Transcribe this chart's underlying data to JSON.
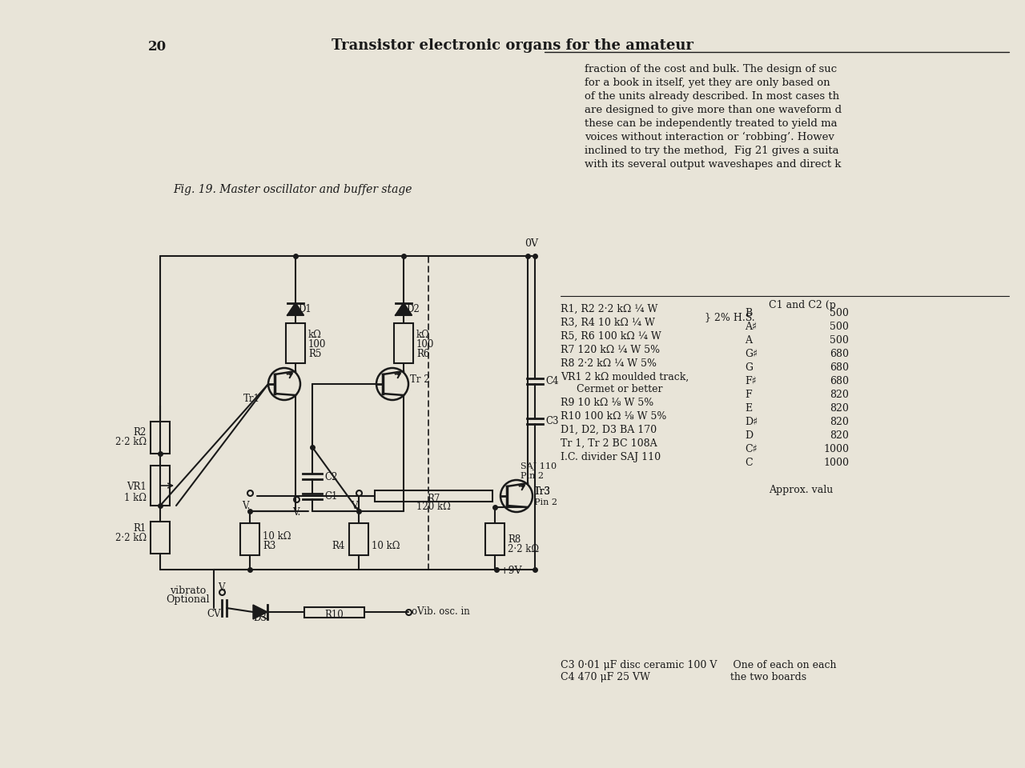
{
  "page_num": "20",
  "title": "Transistor electronic organs for the amateur",
  "fig_caption": "Fig. 19. Master oscillator and buffer stage",
  "bg_color": "#e8e4d8",
  "line_color": "#1a1a1a",
  "body_text": [
    "fraction of the cost and bulk. The design of suc",
    "for a book in itself, yet they are only based on",
    "of the units already described. In most cases th",
    "are designed to give more than one waveform d",
    "these can be independently treated to yield ma",
    "voices without interaction or ‘robbing’. Howev",
    "inclined to try the method,  Fig 21 gives a suita",
    "with its several output waveshapes and direct k"
  ],
  "component_table": [
    "R1, R2 2·2 kΩ ¼ W",
    "R3, R4 10 kΩ ¼ W    2% H.S.",
    "R5, R6 100 kΩ ¼ W",
    "R7 120 kΩ ¼ W 5%",
    "R8 2·2 kΩ ¼ W 5%",
    "VR1 2 kΩ moulded track,",
    "    Cermet or better",
    "R9 10 kΩ ⅛ W 5%",
    "R10 100 kΩ ⅛ W 5%",
    "D1, D2, D3 BA 170",
    "Tr 1, Tr 2 BC 108A",
    "I.C. divider SAJ 110"
  ],
  "note_c1c2": "C1 and C2 (p",
  "note_bottom": "C3 0·01 μF disc ceramic 100 V     One of each on each",
  "note_bottom2": "C4 470 μF 25 VW                         the two boards",
  "notes_B": [
    "B",
    "A♯",
    "A",
    "G♯",
    "G",
    "F♯",
    "F",
    "E",
    "D♯",
    "D",
    "C♯",
    "C"
  ],
  "notes_vals": [
    500,
    500,
    500,
    680,
    680,
    680,
    820,
    820,
    820,
    820,
    1000,
    1000
  ],
  "approx": "Approx. valu"
}
